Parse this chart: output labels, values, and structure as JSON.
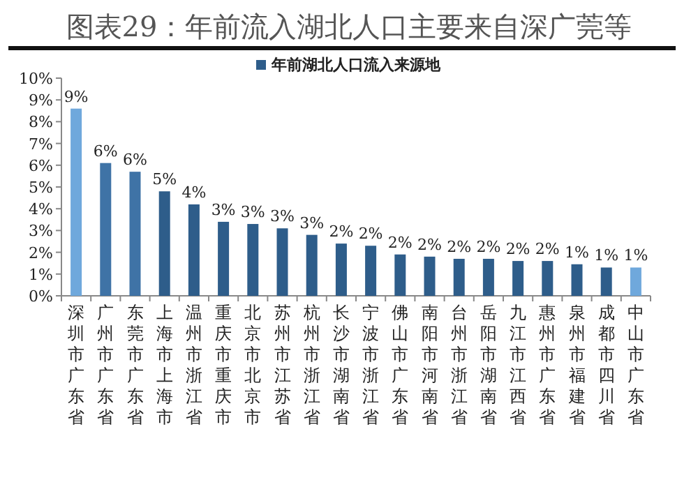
{
  "chart_data": {
    "type": "bar",
    "title": "图表29：年前流入湖北人口主要来自深广莞等",
    "categories": [
      "深圳市广东省",
      "广州市广东省",
      "东莞市广东省",
      "上海市上海市",
      "温州市浙江省",
      "重庆市重庆市",
      "北京市北京市",
      "苏州市江苏省",
      "杭州市浙江省",
      "长沙市湖南省",
      "宁波市浙江省",
      "佛山市广东省",
      "南阳市河南省",
      "台州市浙江省",
      "岳阳市湖南省",
      "九江市江西省",
      "惠州市广东省",
      "泉州市福建省",
      "成都市四川省",
      "中山市广东省"
    ],
    "series": [
      {
        "name": "年前湖北人口流入来源地",
        "color": "#2e5d8a",
        "colors": [
          "#6fa8dc",
          "#3f73a6",
          "#3f73a6",
          "#2e5d8a",
          "#2e5d8a",
          "#2e5d8a",
          "#2e5d8a",
          "#2e5d8a",
          "#2e5d8a",
          "#2e5d8a",
          "#2e5d8a",
          "#2e5d8a",
          "#2e5d8a",
          "#2e5d8a",
          "#2e5d8a",
          "#2e5d8a",
          "#2e5d8a",
          "#2e5d8a",
          "#2e5d8a",
          "#6fa8dc"
        ],
        "values": [
          8.6,
          6.1,
          5.7,
          4.8,
          4.2,
          3.4,
          3.3,
          3.1,
          2.8,
          2.4,
          2.3,
          1.9,
          1.8,
          1.7,
          1.7,
          1.6,
          1.6,
          1.45,
          1.3,
          1.3
        ],
        "value_labels": [
          "9%",
          "6%",
          "6%",
          "5%",
          "4%",
          "3%",
          "3%",
          "3%",
          "3%",
          "2%",
          "2%",
          "2%",
          "2%",
          "2%",
          "2%",
          "2%",
          "2%",
          "1%",
          "1%",
          "1%"
        ]
      }
    ],
    "ylim": [
      0,
      10
    ],
    "yticks": [
      {
        "value": 0,
        "label": "0%"
      },
      {
        "value": 1,
        "label": "1%"
      },
      {
        "value": 2,
        "label": "2%"
      },
      {
        "value": 3,
        "label": "3%"
      },
      {
        "value": 4,
        "label": "4%"
      },
      {
        "value": 5,
        "label": "5%"
      },
      {
        "value": 6,
        "label": "6%"
      },
      {
        "value": 7,
        "label": "7%"
      },
      {
        "value": 8,
        "label": "8%"
      },
      {
        "value": 9,
        "label": "9%"
      },
      {
        "value": 10,
        "label": "10%"
      }
    ],
    "grid": false,
    "legend": "top"
  }
}
